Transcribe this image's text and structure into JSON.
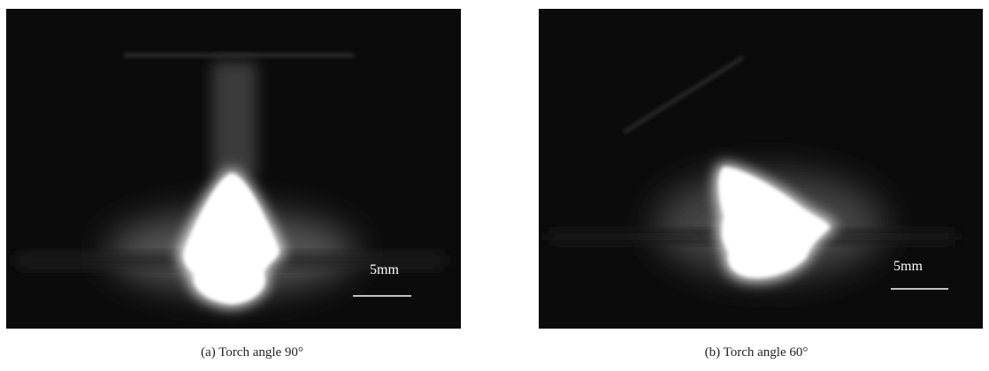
{
  "panels": [
    {
      "scale_label": "5mm",
      "caption": "(a) Torch angle 90°"
    },
    {
      "scale_label": "5mm",
      "caption": "(b) Torch angle 60°"
    }
  ]
}
